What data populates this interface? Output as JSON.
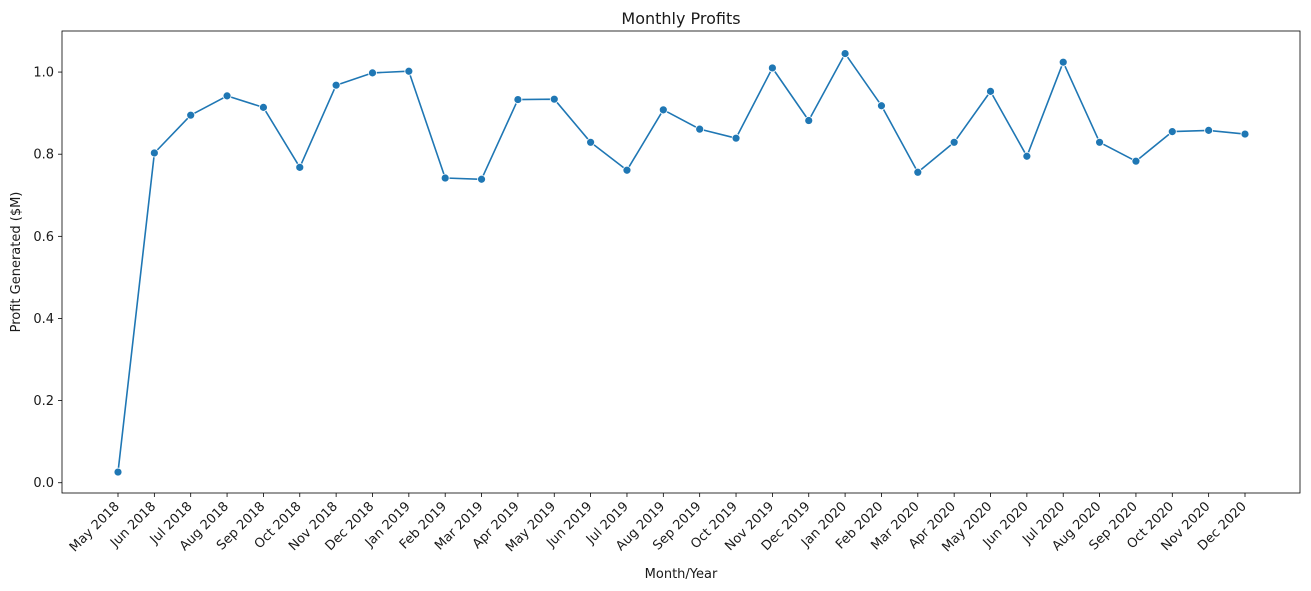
{
  "chart_data": {
    "type": "line",
    "title": "Monthly Profits",
    "xlabel": "Month/Year",
    "ylabel": "Profit Generated ($M)",
    "ylim": [
      -0.025,
      1.1
    ],
    "yticks": [
      0.0,
      0.2,
      0.4,
      0.6,
      0.8,
      1.0
    ],
    "ytick_labels": [
      "0.0",
      "0.2",
      "0.4",
      "0.6",
      "0.8",
      "1.0"
    ],
    "grid": false,
    "legend": "none",
    "marker": "circle",
    "colors": {
      "series": "#1f77b4",
      "axis": "#000000",
      "text": "#1a1a1a"
    },
    "categories": [
      "May 2018",
      "Jun 2018",
      "Jul 2018",
      "Aug 2018",
      "Sep 2018",
      "Oct 2018",
      "Nov 2018",
      "Dec 2018",
      "Jan 2019",
      "Feb 2019",
      "Mar 2019",
      "Apr 2019",
      "May 2019",
      "Jun 2019",
      "Jul 2019",
      "Aug 2019",
      "Sep 2019",
      "Oct 2019",
      "Nov 2019",
      "Dec 2019",
      "Jan 2020",
      "Feb 2020",
      "Mar 2020",
      "Apr 2020",
      "May 2020",
      "Jun 2020",
      "Jul 2020",
      "Aug 2020",
      "Sep 2020",
      "Oct 2020",
      "Nov 2020",
      "Dec 2020"
    ],
    "series": [
      {
        "values": [
          0.026,
          0.803,
          0.895,
          0.942,
          0.914,
          0.768,
          0.968,
          0.998,
          1.002,
          0.742,
          0.739,
          0.933,
          0.934,
          0.829,
          0.761,
          0.908,
          0.861,
          0.839,
          1.01,
          0.882,
          1.045,
          0.918,
          0.756,
          0.829,
          0.953,
          0.795,
          1.024,
          0.829,
          0.783,
          0.855,
          0.858,
          0.849
        ]
      }
    ]
  }
}
